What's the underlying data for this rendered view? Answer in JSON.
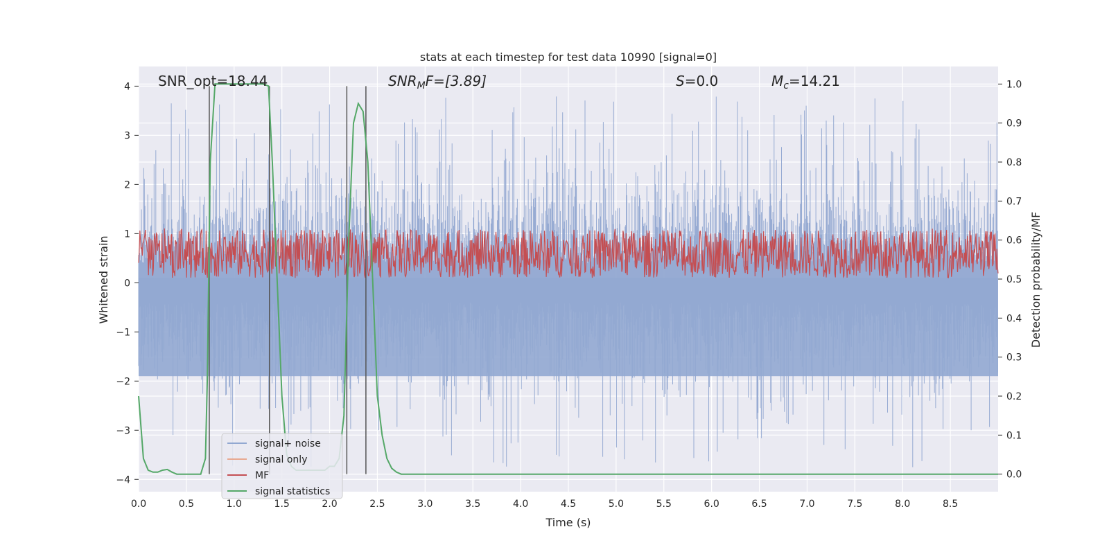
{
  "chart_data": {
    "type": "line",
    "title": "stats at each timestep for test data 10990 [signal=0]",
    "xlabel": "Time (s)",
    "ylabel": "Whitened strain",
    "ylabel_right": "Detection probability/MF",
    "xlim": [
      0.0,
      9.0
    ],
    "ylim": [
      -4.25,
      4.4
    ],
    "ylim_right": [
      -0.045,
      1.045
    ],
    "x_ticks": [
      "0.0",
      "0.5",
      "1.0",
      "1.5",
      "2.0",
      "2.5",
      "3.0",
      "3.5",
      "4.0",
      "4.5",
      "5.0",
      "5.5",
      "6.0",
      "6.5",
      "7.0",
      "7.5",
      "8.0",
      "8.5"
    ],
    "y_ticks": [
      "4",
      "3",
      "2",
      "1",
      "0",
      "−1",
      "−2",
      "−3",
      "−4"
    ],
    "y_right_ticks": [
      "1.0",
      "0.9",
      "0.8",
      "0.7",
      "0.6",
      "0.5",
      "0.4",
      "0.3",
      "0.2",
      "0.1",
      "0.0"
    ],
    "grid": true,
    "legend_position": "lower-left",
    "annotations": {
      "snr_opt": "SNR_opt=18.44",
      "snr_mf_main": "SNR",
      "snr_mf_sub": "M",
      "snr_mf_tail": "F=[3.89]",
      "s_main": "S",
      "s_tail": "=0.0",
      "mc_main": "M",
      "mc_sub": "c",
      "mc_tail": "=14.21"
    },
    "detection_lines_x": [
      0.74,
      1.37,
      2.18,
      2.38
    ],
    "noise_envelope": {
      "upper_typical": 2.2,
      "upper_peak": 3.8,
      "lower_typical": -2.2,
      "lower_peak": -3.8
    },
    "mf_band": {
      "min": 0.5,
      "max": 0.63,
      "axis": "right"
    },
    "series": [
      {
        "name": "signal+ noise",
        "color": "#92a8d1",
        "axis": "left"
      },
      {
        "name": "signal only",
        "color": "#e8a890",
        "axis": "left",
        "values": []
      },
      {
        "name": "MF",
        "color": "#c44e52",
        "axis": "right"
      },
      {
        "name": "signal statistics",
        "color": "#55a868",
        "axis": "right",
        "x": [
          0.0,
          0.05,
          0.1,
          0.15,
          0.2,
          0.25,
          0.3,
          0.35,
          0.4,
          0.45,
          0.5,
          0.55,
          0.6,
          0.65,
          0.7,
          0.72,
          0.75,
          0.8,
          0.85,
          0.9,
          1.0,
          1.1,
          1.2,
          1.3,
          1.36,
          1.4,
          1.45,
          1.5,
          1.55,
          1.6,
          1.65,
          1.7,
          1.75,
          1.8,
          1.85,
          1.9,
          1.95,
          2.0,
          2.05,
          2.1,
          2.15,
          2.2,
          2.25,
          2.3,
          2.35,
          2.4,
          2.45,
          2.5,
          2.55,
          2.6,
          2.65,
          2.7,
          2.75,
          2.8,
          3.0,
          4.0,
          5.0,
          6.0,
          7.0,
          8.0,
          9.0
        ],
        "values": [
          0.2,
          0.04,
          0.01,
          0.005,
          0.005,
          0.01,
          0.012,
          0.005,
          0.0,
          0.0,
          0.0,
          0.0,
          0.0,
          0.0,
          0.04,
          0.25,
          0.8,
          1.0,
          1.0,
          1.0,
          1.0,
          1.0,
          1.0,
          1.0,
          0.995,
          0.8,
          0.5,
          0.2,
          0.05,
          0.02,
          0.01,
          0.01,
          0.01,
          0.01,
          0.01,
          0.01,
          0.01,
          0.02,
          0.02,
          0.04,
          0.15,
          0.6,
          0.9,
          0.95,
          0.93,
          0.8,
          0.5,
          0.2,
          0.1,
          0.04,
          0.015,
          0.005,
          0.0,
          0.0,
          0.0,
          0.0,
          0.0,
          0.0,
          0.0,
          0.0,
          0.0
        ]
      }
    ]
  }
}
